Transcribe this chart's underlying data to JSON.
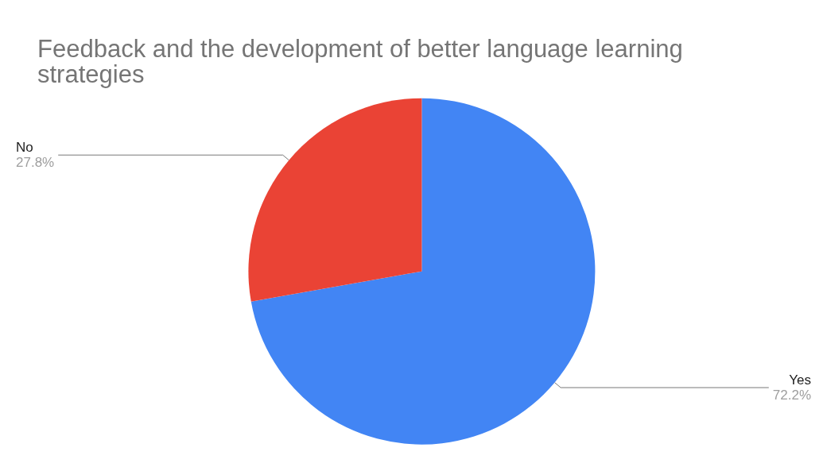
{
  "chart_data": {
    "type": "pie",
    "title": "Feedback and the development of better language learning strategies",
    "categories": [
      "Yes",
      "No"
    ],
    "values": [
      72.2,
      27.8
    ],
    "value_labels": [
      "72.2%",
      "27.8%"
    ],
    "colors": [
      "#4285f4",
      "#ea4335"
    ],
    "legend": false
  }
}
